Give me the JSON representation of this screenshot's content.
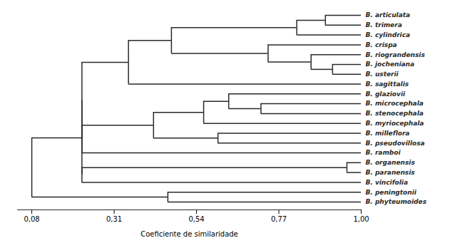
{
  "chart_data": {
    "type": "dendrogram",
    "xlabel": "Coeficiente de similaridade",
    "species": [
      "B. articulata",
      "B. trimera",
      "B. cylindrica",
      "B. crispa",
      "B. riograndensis",
      "B. jocheniana",
      "B. usterii",
      "B. sagittalis",
      "B. glaziovii",
      "B. microcephala",
      "B. stenocephala",
      "B. myriocephala",
      "B. milleflora",
      "B. pseudovillosa",
      "B. ramboi",
      "B. organensis",
      "B. paranensis",
      "B. vincifolia",
      "B. peningtonii",
      "B. phyteumoides"
    ],
    "tip": 1.0,
    "tree": {
      "height": 0.08,
      "children": [
        {
          "height": 0.22,
          "children": [
            {
              "height": 0.22,
              "children": [
                {
                  "height": 0.35,
                  "children": [
                    {
                      "height": 0.47,
                      "children": [
                        {
                          "height": 0.82,
                          "children": [
                            {
                              "height": 0.9,
                              "children": [
                                "B. articulata",
                                "B. trimera"
                              ]
                            },
                            "B. cylindrica"
                          ]
                        },
                        {
                          "height": 0.74,
                          "children": [
                            "B. crispa",
                            {
                              "height": 0.86,
                              "children": [
                                "B. riograndensis",
                                {
                                  "height": 0.92,
                                  "children": [
                                    "B. jocheniana",
                                    "B. usterii"
                                  ]
                                }
                              ]
                            }
                          ]
                        }
                      ]
                    },
                    "B. sagittalis"
                  ]
                },
                {
                  "height": 0.22,
                  "children": [
                    {
                      "height": 0.42,
                      "children": [
                        {
                          "height": 0.56,
                          "children": [
                            {
                              "height": 0.63,
                              "children": [
                                "B. glaziovii",
                                {
                                  "height": 0.72,
                                  "children": [
                                    "B. microcephala",
                                    "B. stenocephala"
                                  ]
                                }
                              ]
                            },
                            "B. myriocephala"
                          ]
                        },
                        {
                          "height": 0.6,
                          "children": [
                            "B. milleflora",
                            "B. pseudovillosa"
                          ]
                        }
                      ]
                    },
                    "B. ramboi"
                  ]
                }
              ]
            },
            {
              "height": 0.22,
              "children": [
                {
                  "height": 0.96,
                  "children": [
                    "B. organensis",
                    "B. paranensis"
                  ]
                },
                "B. vincifolia"
              ]
            }
          ]
        },
        {
          "height": 0.46,
          "children": [
            "B. peningtonii",
            "B. phyteumoides"
          ]
        }
      ]
    },
    "xlim": [
      0.04,
      1.0
    ],
    "xticks": [
      {
        "value": 0.08,
        "label": "0,08"
      },
      {
        "value": 0.31,
        "label": "0,31"
      },
      {
        "value": 0.54,
        "label": "0,54"
      },
      {
        "value": 0.77,
        "label": "0,77"
      },
      {
        "value": 1.0,
        "label": "1,00"
      }
    ],
    "color": "#2a2a2a"
  }
}
